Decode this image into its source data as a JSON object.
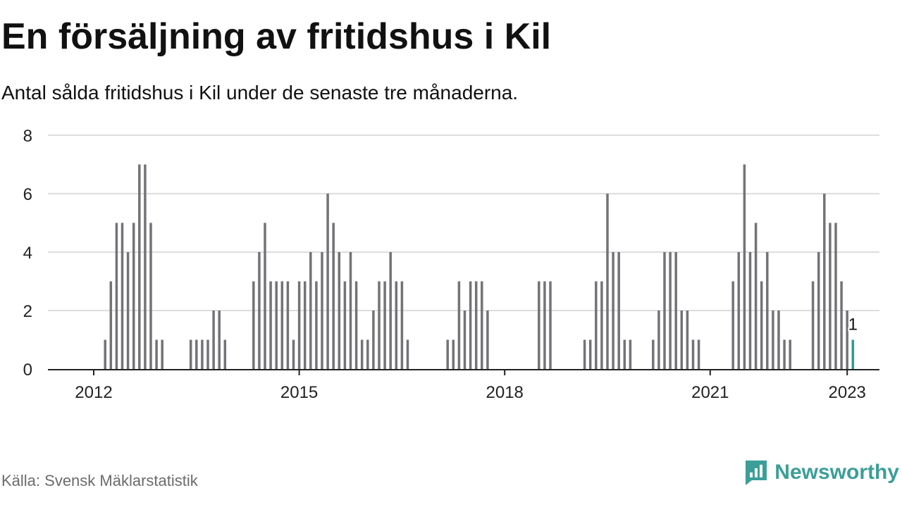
{
  "title": "En försäljning av fritidshus i Kil",
  "subtitle": "Antal sålda fritidshus i Kil under de senaste tre månaderna.",
  "source": "Källa: Svensk Mäklarstatistik",
  "brand": {
    "name": "Newsworthy",
    "icon": "newsworthy-logo-icon"
  },
  "colors": {
    "bar": "#737377",
    "highlight": "#2a9d96",
    "grid": "#dddddd",
    "axis": "#222222",
    "brand": "#3c9e98"
  },
  "chart_data": {
    "type": "bar",
    "start_year": 2012,
    "start_month": 1,
    "ylim": [
      0,
      8
    ],
    "yticks": [
      0,
      2,
      4,
      6,
      8
    ],
    "xticks": [
      2012,
      2015,
      2018,
      2021,
      2023
    ],
    "values": [
      0,
      0,
      1,
      3,
      5,
      5,
      4,
      5,
      7,
      7,
      5,
      1,
      1,
      0,
      0,
      0,
      0,
      1,
      1,
      1,
      1,
      2,
      2,
      1,
      0,
      0,
      0,
      0,
      3,
      4,
      5,
      3,
      3,
      3,
      3,
      1,
      3,
      3,
      4,
      3,
      4,
      6,
      5,
      4,
      3,
      4,
      3,
      1,
      1,
      2,
      3,
      3,
      4,
      3,
      3,
      1,
      0,
      0,
      0,
      0,
      0,
      0,
      1,
      1,
      3,
      2,
      3,
      3,
      3,
      2,
      0,
      0,
      0,
      0,
      0,
      0,
      0,
      0,
      3,
      3,
      3,
      0,
      0,
      0,
      0,
      0,
      1,
      1,
      3,
      3,
      6,
      4,
      4,
      1,
      1,
      0,
      0,
      0,
      1,
      2,
      4,
      4,
      4,
      2,
      2,
      1,
      1,
      0,
      0,
      0,
      0,
      0,
      3,
      4,
      7,
      4,
      5,
      3,
      4,
      2,
      2,
      1,
      1,
      0,
      0,
      0,
      3,
      4,
      6,
      5,
      5,
      3,
      2,
      1
    ],
    "annotation": "1"
  }
}
